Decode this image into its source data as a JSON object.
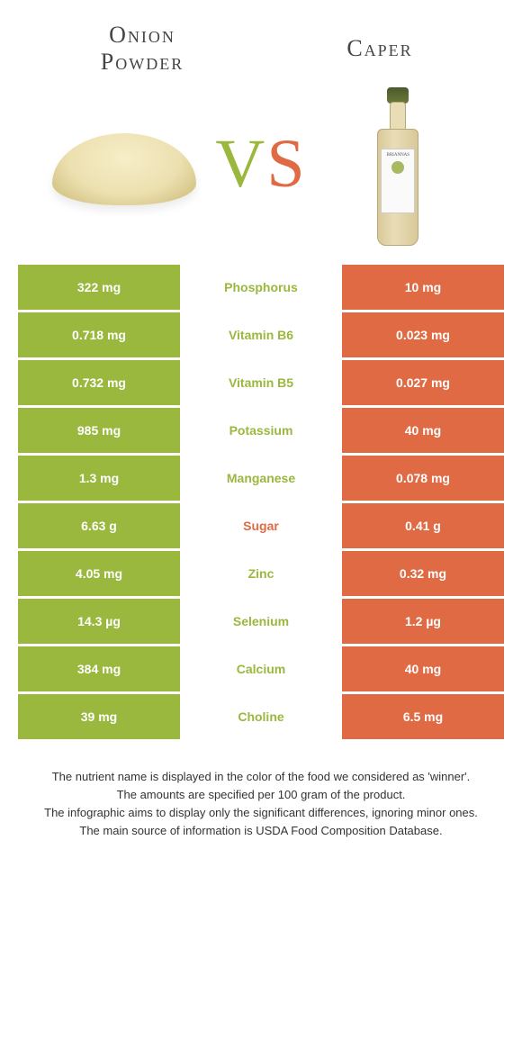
{
  "colors": {
    "left": "#9ab83d",
    "right": "#e06a43",
    "nutrient_left_winner": "#9ab83d",
    "nutrient_right_winner": "#e06a43",
    "text_dark": "#333333",
    "background": "#ffffff"
  },
  "header": {
    "left_title_line1": "Onion",
    "left_title_line2": "Powder",
    "right_title": "Caper",
    "vs_v": "V",
    "vs_s": "S",
    "bottle_brand": "BRIANNAS"
  },
  "table": {
    "left_bg": "#9ab83d",
    "right_bg": "#e06a43",
    "rows": [
      {
        "left": "322 mg",
        "nutrient": "Phosphorus",
        "right": "10 mg",
        "winner": "left"
      },
      {
        "left": "0.718 mg",
        "nutrient": "Vitamin B6",
        "right": "0.023 mg",
        "winner": "left"
      },
      {
        "left": "0.732 mg",
        "nutrient": "Vitamin B5",
        "right": "0.027 mg",
        "winner": "left"
      },
      {
        "left": "985 mg",
        "nutrient": "Potassium",
        "right": "40 mg",
        "winner": "left"
      },
      {
        "left": "1.3 mg",
        "nutrient": "Manganese",
        "right": "0.078 mg",
        "winner": "left"
      },
      {
        "left": "6.63 g",
        "nutrient": "Sugar",
        "right": "0.41 g",
        "winner": "right"
      },
      {
        "left": "4.05 mg",
        "nutrient": "Zinc",
        "right": "0.32 mg",
        "winner": "left"
      },
      {
        "left": "14.3 µg",
        "nutrient": "Selenium",
        "right": "1.2 µg",
        "winner": "left"
      },
      {
        "left": "384 mg",
        "nutrient": "Calcium",
        "right": "40 mg",
        "winner": "left"
      },
      {
        "left": "39 mg",
        "nutrient": "Choline",
        "right": "6.5 mg",
        "winner": "left"
      }
    ]
  },
  "footer": {
    "line1": "The nutrient name is displayed in the color of the food we considered as 'winner'.",
    "line2": "The amounts are specified per 100 gram of the product.",
    "line3": "The infographic aims to display only the significant differences, ignoring minor ones.",
    "line4": "The main source of information is USDA Food Composition Database."
  }
}
